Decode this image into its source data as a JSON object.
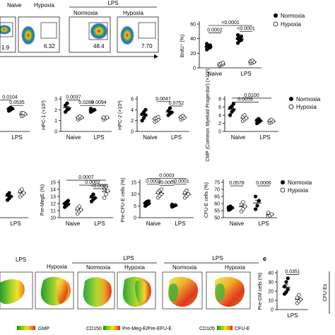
{
  "series_names": [
    "Normoxia",
    "Hypoxia"
  ],
  "flow": {
    "naive_label": "Naive",
    "lps_label": "LPS",
    "normoxia_label": "Normoxia",
    "hypoxia_label": "Hypoxia",
    "pcts": [
      "1.9",
      "6.32",
      "48.4",
      "7.70"
    ]
  },
  "chart_data": [
    {
      "type": "scatter",
      "id": "brdu",
      "title": "",
      "ylabel": "BrdU⁺ (%)",
      "categories": [
        "Naive",
        "LPS"
      ],
      "ylim": [
        0,
        60
      ],
      "yticks": [
        0,
        20,
        40,
        60
      ],
      "series": [
        {
          "name": "Normoxia",
          "values": [
            [
              25,
              27,
              28,
              29,
              30,
              31,
              33
            ],
            [
              34,
              37,
              38,
              40,
              41,
              43,
              45
            ]
          ]
        },
        {
          "name": "Hypoxia",
          "values": [
            [
              3,
              4,
              5,
              5,
              6,
              7
            ],
            [
              6,
              7,
              8,
              9,
              10
            ]
          ]
        }
      ],
      "significance": [
        {
          "text": "<0.0001",
          "from": [
            0,
            "Normoxia"
          ],
          "to": [
            1,
            "Hypoxia"
          ],
          "y": 58
        },
        {
          "text": "0.0002",
          "from": [
            0,
            "Normoxia"
          ],
          "to": [
            0,
            "Hypoxia"
          ],
          "y": 48
        },
        {
          "text": "<0.0001",
          "from": [
            1,
            "Normoxia"
          ],
          "to": [
            1,
            "Hypoxia"
          ],
          "y": 50
        }
      ]
    },
    {
      "type": "scatter",
      "id": "lsk",
      "title": "",
      "ylabel": "",
      "categories": [
        "",
        "LPS"
      ],
      "ylim": [
        0,
        3
      ],
      "yticks": [],
      "series": [
        {
          "name": "Normoxia",
          "values": [
            [],
            [
              1.9,
              2.0,
              2.1,
              2.1,
              2.2
            ]
          ]
        },
        {
          "name": "Hypoxia",
          "values": [
            [],
            [
              1.4,
              1.5,
              1.6,
              1.7,
              1.7
            ]
          ]
        }
      ],
      "significance": [
        {
          "text": "0.0104",
          "from": [
            0,
            "Hypoxia"
          ],
          "to": [
            1,
            "Normoxia"
          ],
          "y": 2.9
        },
        {
          "text": "0.0535",
          "from": [
            1,
            "Normoxia"
          ],
          "to": [
            1,
            "Hypoxia"
          ],
          "y": 2.4
        }
      ]
    },
    {
      "type": "scatter",
      "id": "hpc1",
      "title": "",
      "ylabel": "HPC-1 (×10³)",
      "categories": [
        "Naive",
        "LPS"
      ],
      "ylim": [
        0,
        3
      ],
      "yticks": [
        0,
        1,
        2,
        3
      ],
      "series": [
        {
          "name": "Normoxia",
          "values": [
            [
              1.8,
              2.0,
              2.1,
              2.4,
              2.6
            ],
            [
              1.8,
              1.9,
              2.0,
              2.1
            ]
          ]
        },
        {
          "name": "Hypoxia",
          "values": [
            [
              1.1,
              1.2,
              1.3,
              1.3,
              1.4
            ],
            [
              1.1,
              1.2,
              1.3,
              1.3
            ]
          ]
        }
      ],
      "significance": [
        {
          "text": "0.0037",
          "from": [
            0,
            "Normoxia"
          ],
          "to": [
            0,
            "Hypoxia"
          ],
          "y": 2.9
        },
        {
          "text": "0.0288",
          "from": [
            0,
            "Hypoxia"
          ],
          "to": [
            1,
            "Normoxia"
          ],
          "y": 2.4
        },
        {
          "text": "0.0094",
          "from": [
            1,
            "Normoxia"
          ],
          "to": [
            1,
            "Hypoxia"
          ],
          "y": 2.4
        }
      ]
    },
    {
      "type": "scatter",
      "id": "hpc2",
      "title": "",
      "ylabel": "HPC-2 (×10³)",
      "categories": [
        "Naive",
        "LPS"
      ],
      "ylim": [
        0,
        6
      ],
      "yticks": [
        0,
        2,
        4,
        6
      ],
      "series": [
        {
          "name": "Normoxia",
          "values": [
            [
              2.0,
              2.5,
              3.0,
              3.2,
              3.6,
              4.0
            ],
            [
              3.0,
              3.3,
              3.5,
              3.8,
              4.3
            ]
          ]
        },
        {
          "name": "Hypoxia",
          "values": [
            [
              1.8,
              2.0,
              2.2,
              2.4,
              2.5,
              2.7
            ],
            [
              2.2,
              2.4,
              2.6,
              2.7,
              2.9
            ]
          ]
        }
      ],
      "significance": [
        {
          "text": "0.0047",
          "from": [
            0,
            "Hypoxia"
          ],
          "to": [
            1,
            "Normoxia"
          ],
          "y": 5.5
        },
        {
          "text": "0.0752",
          "from": [
            1,
            "Normoxia"
          ],
          "to": [
            1,
            "Hypoxia"
          ],
          "y": 4.7
        }
      ]
    },
    {
      "type": "scatter",
      "id": "cmp",
      "title": "",
      "ylabel": "CMP (Common Myeloid Progenitor) (×10³)",
      "categories": [
        "Naive",
        "LPS"
      ],
      "ylim": [
        0,
        8
      ],
      "yticks": [
        0,
        2,
        4,
        6,
        8
      ],
      "series": [
        {
          "name": "Normoxia",
          "values": [
            [
              4.0,
              4.8,
              5.3,
              5.8,
              6.2,
              6.8
            ],
            [
              2.0,
              2.3,
              2.6,
              2.8,
              3.1
            ]
          ]
        },
        {
          "name": "Hypoxia",
          "values": [
            [
              2.6,
              3.0,
              3.3,
              3.6,
              4.0
            ],
            [
              2.1,
              2.3,
              2.5,
              2.7,
              2.9
            ]
          ]
        }
      ],
      "significance": [
        {
          "text": "0.0100",
          "from": [
            0,
            "Normoxia"
          ],
          "to": [
            1,
            "Hypoxia"
          ],
          "y": 8.2
        },
        {
          "text": "0.0059",
          "from": [
            0,
            "Normoxia"
          ],
          "to": [
            1,
            "Normoxia"
          ],
          "y": 7.2
        }
      ]
    },
    {
      "type": "scatter",
      "id": "gmp",
      "title": "",
      "ylabel": "",
      "categories": [
        "",
        "LPS"
      ],
      "ylim": [
        0,
        40
      ],
      "yticks": [],
      "series": [
        {
          "name": "Normoxia",
          "values": [
            [],
            [
              20,
              22,
              24,
              26,
              28
            ]
          ]
        },
        {
          "name": "Hypoxia",
          "values": [
            [],
            [
              24,
              26,
              28,
              30,
              32
            ]
          ]
        }
      ],
      "significance": []
    },
    {
      "type": "scatter",
      "id": "premege",
      "title": "",
      "ylabel": "Pre-MegE (%)",
      "categories": [
        "Naive",
        "LPS"
      ],
      "ylim": [
        10,
        15
      ],
      "yticks": [
        10,
        11,
        12,
        13,
        14,
        15
      ],
      "series": [
        {
          "name": "Normoxia",
          "values": [
            [
              11.5,
              11.7,
              11.9,
              12.0,
              12.2,
              12.4
            ],
            [
              12.3,
              12.6,
              12.8,
              13.0,
              13.3
            ]
          ]
        },
        {
          "name": "Hypoxia",
          "values": [
            [
              10.6,
              10.9,
              11.1,
              11.3,
              11.6
            ],
            [
              12.8,
              13.3,
              13.8,
              14.1,
              14.4
            ]
          ]
        }
      ],
      "significance": [
        {
          "text": "0.0007",
          "from": [
            0,
            "Normoxia"
          ],
          "to": [
            1,
            "Hypoxia"
          ],
          "y": 15.3
        },
        {
          "text": "0.0002",
          "from": [
            0,
            "Hypoxia"
          ],
          "to": [
            1,
            "Hypoxia"
          ],
          "y": 14.6
        },
        {
          "text": "<0.0001",
          "from": [
            1,
            "Normoxia"
          ],
          "to": [
            1,
            "Hypoxia"
          ],
          "y": 14.1
        }
      ]
    },
    {
      "type": "scatter",
      "id": "precfue",
      "title": "",
      "ylabel": "Pre-CFU-E cells (%)",
      "categories": [
        "Naive",
        "LPS"
      ],
      "ylim": [
        0,
        15
      ],
      "yticks": [
        0,
        5,
        10,
        15
      ],
      "series": [
        {
          "name": "Normoxia",
          "values": [
            [
              5.0,
              5.5,
              6.0,
              6.3,
              6.8,
              7.0
            ],
            [
              4.6,
              5.0,
              5.3,
              5.6
            ]
          ]
        },
        {
          "name": "Hypoxia",
          "values": [
            [
              8.5,
              9.3,
              10.0,
              10.8,
              11.5,
              12.0
            ],
            [
              8.5,
              9.2,
              10.0,
              10.7,
              11.5
            ]
          ]
        }
      ],
      "significance": [
        {
          "text": "0.0003",
          "from": [
            0,
            "Normoxia"
          ],
          "to": [
            1,
            "Hypoxia"
          ],
          "y": 16.6
        },
        {
          "text": "0.0003",
          "from": [
            0,
            "Normoxia"
          ],
          "to": [
            0,
            "Hypoxia"
          ],
          "y": 14.3
        },
        {
          "text": "<0.0001",
          "from": [
            0,
            "Hypoxia"
          ],
          "to": [
            1,
            "Normoxia"
          ],
          "y": 13.6
        },
        {
          "text": "<0.0001",
          "from": [
            1,
            "Normoxia"
          ],
          "to": [
            1,
            "Hypoxia"
          ],
          "y": 14.3
        }
      ]
    },
    {
      "type": "scatter",
      "id": "cfue",
      "title": "",
      "ylabel": "CFU-E cells (%)",
      "categories": [
        "Naive",
        "LPS"
      ],
      "ylim": [
        50,
        75
      ],
      "yticks": [
        50,
        55,
        60,
        65,
        70,
        75
      ],
      "series": [
        {
          "name": "Normoxia",
          "values": [
            [
              55.5,
              56.0,
              57.0,
              57.5,
              58.0
            ],
            [
              56.0,
              58.5,
              62.0,
              65.0
            ]
          ]
        },
        {
          "name": "Hypoxia",
          "values": [
            [
              54.5,
              56.0,
              58.0,
              59.5,
              61.0
            ],
            [
              51.0,
              51.5,
              52.5,
              53.5
            ]
          ]
        }
      ],
      "significance": [
        {
          "text": "0.0578",
          "from": [
            0,
            "Normoxia"
          ],
          "to": [
            0,
            "Hypoxia"
          ],
          "y": 72.5
        },
        {
          "text": "0.0006",
          "from": [
            1,
            "Normoxia"
          ],
          "to": [
            1,
            "Hypoxia"
          ],
          "y": 72.5
        }
      ]
    },
    {
      "type": "scatter",
      "id": "pregm",
      "title": "",
      "ylabel": "Pre-GM cells (%)",
      "categories": [
        "LPS"
      ],
      "ylim": [
        0,
        40
      ],
      "yticks": [
        0,
        10,
        20,
        30,
        40
      ],
      "series": [
        {
          "name": "Normoxia",
          "values": [
            [
              17,
              19,
              22,
              25,
              30,
              34
            ]
          ]
        },
        {
          "name": "Hypoxia",
          "values": [
            [
              7,
              9,
              11,
              13,
              16
            ]
          ]
        }
      ],
      "significance": [
        {
          "text": "0.0351",
          "from": [
            0,
            "Normoxia"
          ],
          "to": [
            0,
            "Hypoxia"
          ],
          "y": 38
        }
      ]
    }
  ],
  "umap": {
    "lps_label": "LPS",
    "hypoxia_label": "Hypoxia",
    "normoxia_label": "Normoxia",
    "scale_gmp": "GMP",
    "scale_cd150": "CD150",
    "scale_premeg": "Pre-Meg-E/Pre-EFU-E",
    "scale_cd105": "CD105",
    "scale_cfue": "CFU-E"
  },
  "panel_e": {
    "letter": "e",
    "cut_ylabel": "CFU-Es",
    "lps_label": "LPS"
  }
}
